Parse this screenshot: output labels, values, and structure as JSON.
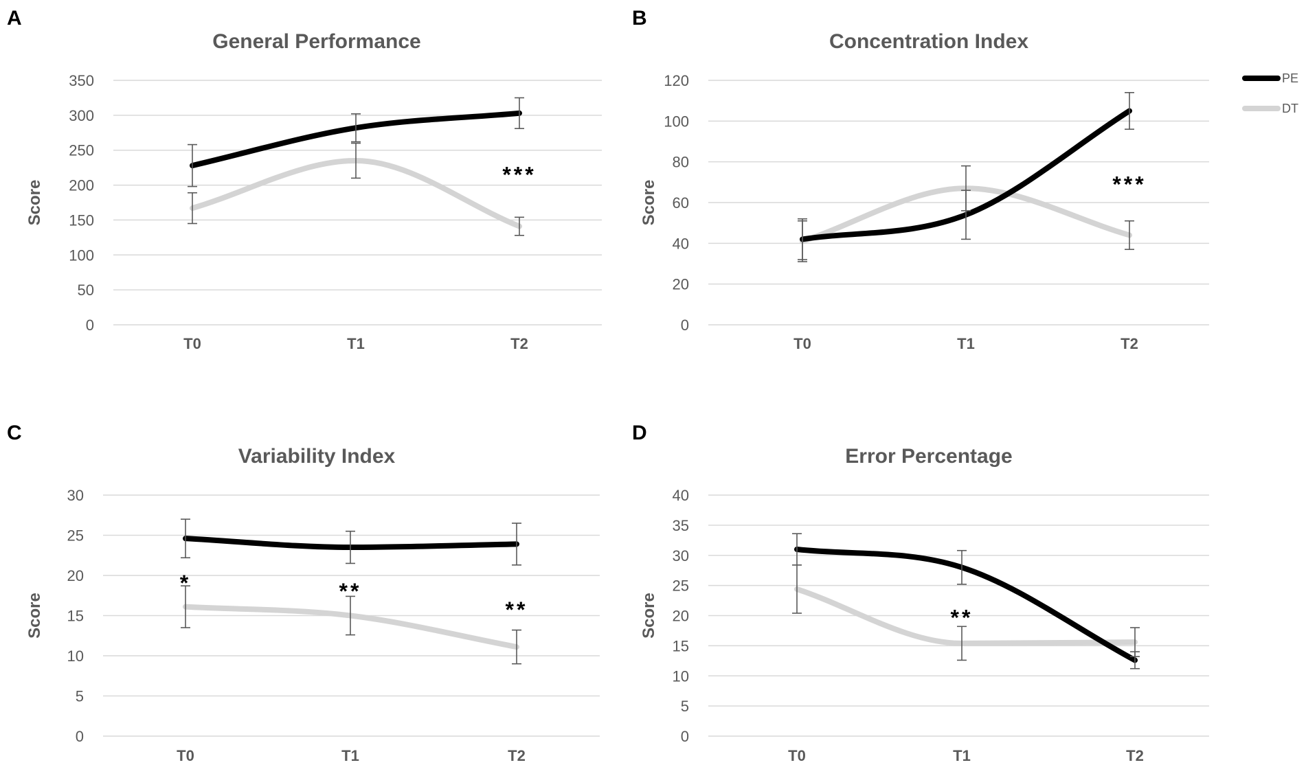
{
  "legend": [
    {
      "name": "PE",
      "color": "#000000"
    },
    {
      "name": "DT",
      "color": "#d4d4d4"
    }
  ],
  "chart_data": [
    {
      "panel": "A",
      "type": "line",
      "title": "General Performance",
      "ylabel": "Score",
      "xlabel": "",
      "categories": [
        "T0",
        "T1",
        "T2"
      ],
      "ylim": [
        0,
        350
      ],
      "yticks": [
        0,
        50,
        100,
        150,
        200,
        250,
        300,
        350
      ],
      "series": [
        {
          "name": "PE",
          "color": "#000000",
          "values": [
            228,
            282,
            303
          ],
          "errors": [
            30,
            20,
            22
          ]
        },
        {
          "name": "DT",
          "color": "#d4d4d4",
          "values": [
            167,
            235,
            141
          ],
          "errors": [
            22,
            25,
            13
          ]
        }
      ],
      "annotations": [
        {
          "text": "***",
          "category": "T2",
          "y": 218
        }
      ]
    },
    {
      "panel": "B",
      "type": "line",
      "title": "Concentration Index",
      "ylabel": "Score",
      "xlabel": "",
      "categories": [
        "T0",
        "T1",
        "T2"
      ],
      "ylim": [
        0,
        120
      ],
      "yticks": [
        0,
        20,
        40,
        60,
        80,
        100,
        120
      ],
      "series": [
        {
          "name": "PE",
          "color": "#000000",
          "values": [
            42,
            54,
            105
          ],
          "errors": [
            10,
            12,
            9
          ]
        },
        {
          "name": "DT",
          "color": "#d4d4d4",
          "values": [
            41,
            67,
            44
          ],
          "errors": [
            10,
            11,
            7
          ]
        }
      ],
      "annotations": [
        {
          "text": "***",
          "category": "T2",
          "y": 70
        }
      ]
    },
    {
      "panel": "C",
      "type": "line",
      "title": "Variability Index",
      "ylabel": "Score",
      "xlabel": "",
      "categories": [
        "T0",
        "T1",
        "T2"
      ],
      "ylim": [
        0,
        30
      ],
      "yticks": [
        0,
        5,
        10,
        15,
        20,
        25,
        30
      ],
      "series": [
        {
          "name": "PE",
          "color": "#000000",
          "values": [
            24.6,
            23.5,
            23.9
          ],
          "errors": [
            2.4,
            2.0,
            2.6
          ]
        },
        {
          "name": "DT",
          "color": "#d4d4d4",
          "values": [
            16.1,
            15.0,
            11.1
          ],
          "errors": [
            2.6,
            2.4,
            2.1
          ]
        }
      ],
      "annotations": [
        {
          "text": "*",
          "category": "T0",
          "y": 19.3
        },
        {
          "text": "**",
          "category": "T1",
          "y": 18.3
        },
        {
          "text": "**",
          "category": "T2",
          "y": 16.0
        }
      ]
    },
    {
      "panel": "D",
      "type": "line",
      "title": "Error Percentage",
      "ylabel": "Score",
      "xlabel": "",
      "categories": [
        "T0",
        "T1",
        "T2"
      ],
      "ylim": [
        0,
        40
      ],
      "yticks": [
        0,
        5,
        10,
        15,
        20,
        25,
        30,
        35,
        40
      ],
      "series": [
        {
          "name": "PE",
          "color": "#000000",
          "values": [
            31.0,
            28.0,
            12.6
          ],
          "errors": [
            2.6,
            2.8,
            1.4
          ]
        },
        {
          "name": "DT",
          "color": "#d4d4d4",
          "values": [
            24.4,
            15.4,
            15.6
          ],
          "errors": [
            4.0,
            2.8,
            2.4
          ]
        }
      ],
      "annotations": [
        {
          "text": "**",
          "category": "T1",
          "y": 20.0
        }
      ]
    }
  ]
}
